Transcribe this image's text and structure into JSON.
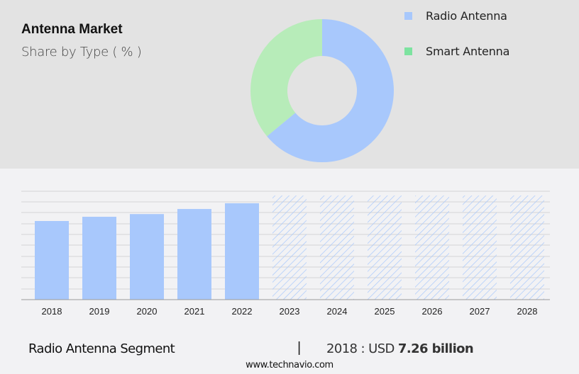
{
  "header": {
    "title": "Antenna Market",
    "subtitle": "Share by Type ( % )"
  },
  "legend": [
    {
      "label": "Radio Antenna",
      "color": "#a8c8fc"
    },
    {
      "label": "Smart Antenna",
      "color": "#7de3a0"
    }
  ],
  "footer": {
    "segment": "Radio Antenna Segment",
    "separator": "|",
    "year_prefix": "2018 : USD",
    "value": "7.26 billion",
    "site": "www.technavio.com"
  },
  "colors": {
    "radio": "#a8c8fc",
    "smart_donut": "#b7ecb9",
    "smart_legend": "#7de3a0",
    "top_bg": "#e3e3e3",
    "bottom_bg": "#f2f2f4",
    "grid": "#d4d4d6",
    "axis": "#9a9a9a"
  },
  "chart_data": [
    {
      "type": "pie",
      "title": "Antenna Market",
      "subtitle": "Share by Type ( % )",
      "donut": true,
      "categories": [
        "Radio Antenna",
        "Smart Antenna"
      ],
      "values": [
        64,
        36
      ],
      "legend_position": "right"
    },
    {
      "type": "bar",
      "title": "Radio Antenna Segment",
      "categories": [
        "2018",
        "2019",
        "2020",
        "2021",
        "2022",
        "2023",
        "2024",
        "2025",
        "2026",
        "2027",
        "2028"
      ],
      "values": [
        7.26,
        7.65,
        7.9,
        8.37,
        8.9,
        null,
        null,
        null,
        null,
        null,
        null
      ],
      "forecast_years": [
        "2023",
        "2024",
        "2025",
        "2026",
        "2027",
        "2028"
      ],
      "forecast_style": "hatched",
      "unit": "USD billion",
      "annotation": "2018 : USD 7.26 billion",
      "xlabel": "",
      "ylabel": "",
      "grid": true,
      "y_ticks_shown": false
    }
  ]
}
